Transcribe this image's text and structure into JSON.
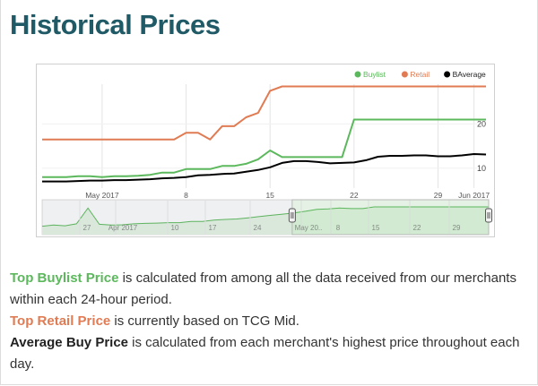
{
  "section_title": "Historical Prices",
  "colors": {
    "buylist": "#5cb85c",
    "retail": "#e07b53",
    "average": "#000000",
    "title": "#1f5a66",
    "navigator_fill": "#e3f1e3"
  },
  "chart_data": {
    "type": "line",
    "title": "",
    "xlabel": "",
    "ylabel": "",
    "x_ticks": [
      "May 2017",
      "8",
      "15",
      "22",
      "29",
      "Jun 2017"
    ],
    "y_ticks": [
      "10",
      "20"
    ],
    "x": [
      "2017-04-26",
      "2017-04-27",
      "2017-04-28",
      "2017-04-29",
      "2017-04-30",
      "2017-05-01",
      "2017-05-02",
      "2017-05-03",
      "2017-05-04",
      "2017-05-05",
      "2017-05-06",
      "2017-05-07",
      "2017-05-08",
      "2017-05-09",
      "2017-05-10",
      "2017-05-11",
      "2017-05-12",
      "2017-05-13",
      "2017-05-14",
      "2017-05-15",
      "2017-05-16",
      "2017-05-17",
      "2017-05-18",
      "2017-05-19",
      "2017-05-20",
      "2017-05-21",
      "2017-05-22",
      "2017-05-23",
      "2017-05-24",
      "2017-05-25",
      "2017-05-26",
      "2017-05-27",
      "2017-05-28",
      "2017-05-29",
      "2017-05-30",
      "2017-05-31",
      "2017-06-01",
      "2017-06-02"
    ],
    "ylim": [
      5.5,
      29
    ],
    "grid": true,
    "legend_position": "top-right",
    "series": [
      {
        "name": "Buylist",
        "color_key": "buylist",
        "values": [
          8,
          8,
          8,
          8.2,
          8.2,
          8,
          8.2,
          8.2,
          8.3,
          8.5,
          9,
          9,
          9.8,
          9.8,
          9.8,
          10.5,
          10.5,
          11,
          12,
          14,
          12.5,
          12.5,
          12.5,
          12.5,
          12.5,
          12.5,
          21,
          21,
          21,
          21,
          21,
          21,
          21,
          21,
          21,
          21,
          21,
          21
        ]
      },
      {
        "name": "Retail",
        "color_key": "retail",
        "values": [
          16.5,
          16.5,
          16.5,
          16.5,
          16.5,
          16.5,
          16.5,
          16.5,
          16.5,
          16.5,
          16.5,
          16.5,
          18,
          18,
          16.5,
          19.5,
          19.5,
          21.5,
          22.5,
          27.5,
          28.5,
          28.5,
          28.5,
          28.5,
          28.5,
          28.5,
          28.5,
          28.5,
          28.5,
          28.5,
          28.5,
          28.5,
          28.5,
          28.5,
          28.5,
          28.5,
          28.5,
          28.5
        ]
      },
      {
        "name": "BAverage",
        "color_key": "average",
        "values": [
          7,
          7,
          7,
          7.1,
          7.2,
          7.2,
          7.3,
          7.3,
          7.4,
          7.5,
          7.7,
          7.8,
          8,
          8.4,
          8.5,
          8.7,
          8.8,
          9.2,
          9.6,
          10.2,
          11.2,
          11.6,
          11.6,
          11.4,
          11.1,
          11.2,
          11.3,
          11.8,
          12.6,
          12.8,
          12.8,
          12.9,
          12.9,
          12.7,
          12.7,
          12.9,
          13.2,
          13.1
        ]
      }
    ],
    "navigator": {
      "x_ticks": [
        "27",
        "Apr 2017",
        "10",
        "17",
        "24",
        "May 20..",
        "8",
        "15",
        "22",
        "29"
      ],
      "values": [
        0.2,
        0.25,
        0.22,
        0.3,
        0.95,
        0.28,
        0.25,
        0.26,
        0.3,
        0.32,
        0.33,
        0.35,
        0.35,
        0.4,
        0.4,
        0.45,
        0.48,
        0.5,
        0.55,
        0.6,
        0.65,
        0.7,
        0.75,
        0.82,
        0.9,
        0.92,
        0.95,
        0.93,
        0.93,
        1,
        1,
        1,
        1,
        1,
        1,
        1,
        1,
        1,
        1,
        1
      ],
      "selection": [
        0.56,
        1.0
      ]
    }
  },
  "notes": [
    {
      "bold": "Top Buylist Price",
      "rest": " is calculated from among all the data received from our merchants within each 24-hour period.",
      "style": "buylist"
    },
    {
      "bold": "Top Retail Price",
      "rest": " is currently based on TCG Mid.",
      "style": "retail"
    },
    {
      "bold": "Average Buy Price",
      "rest": " is calculated from each merchant's highest price throughout each day.",
      "style": "average"
    }
  ]
}
